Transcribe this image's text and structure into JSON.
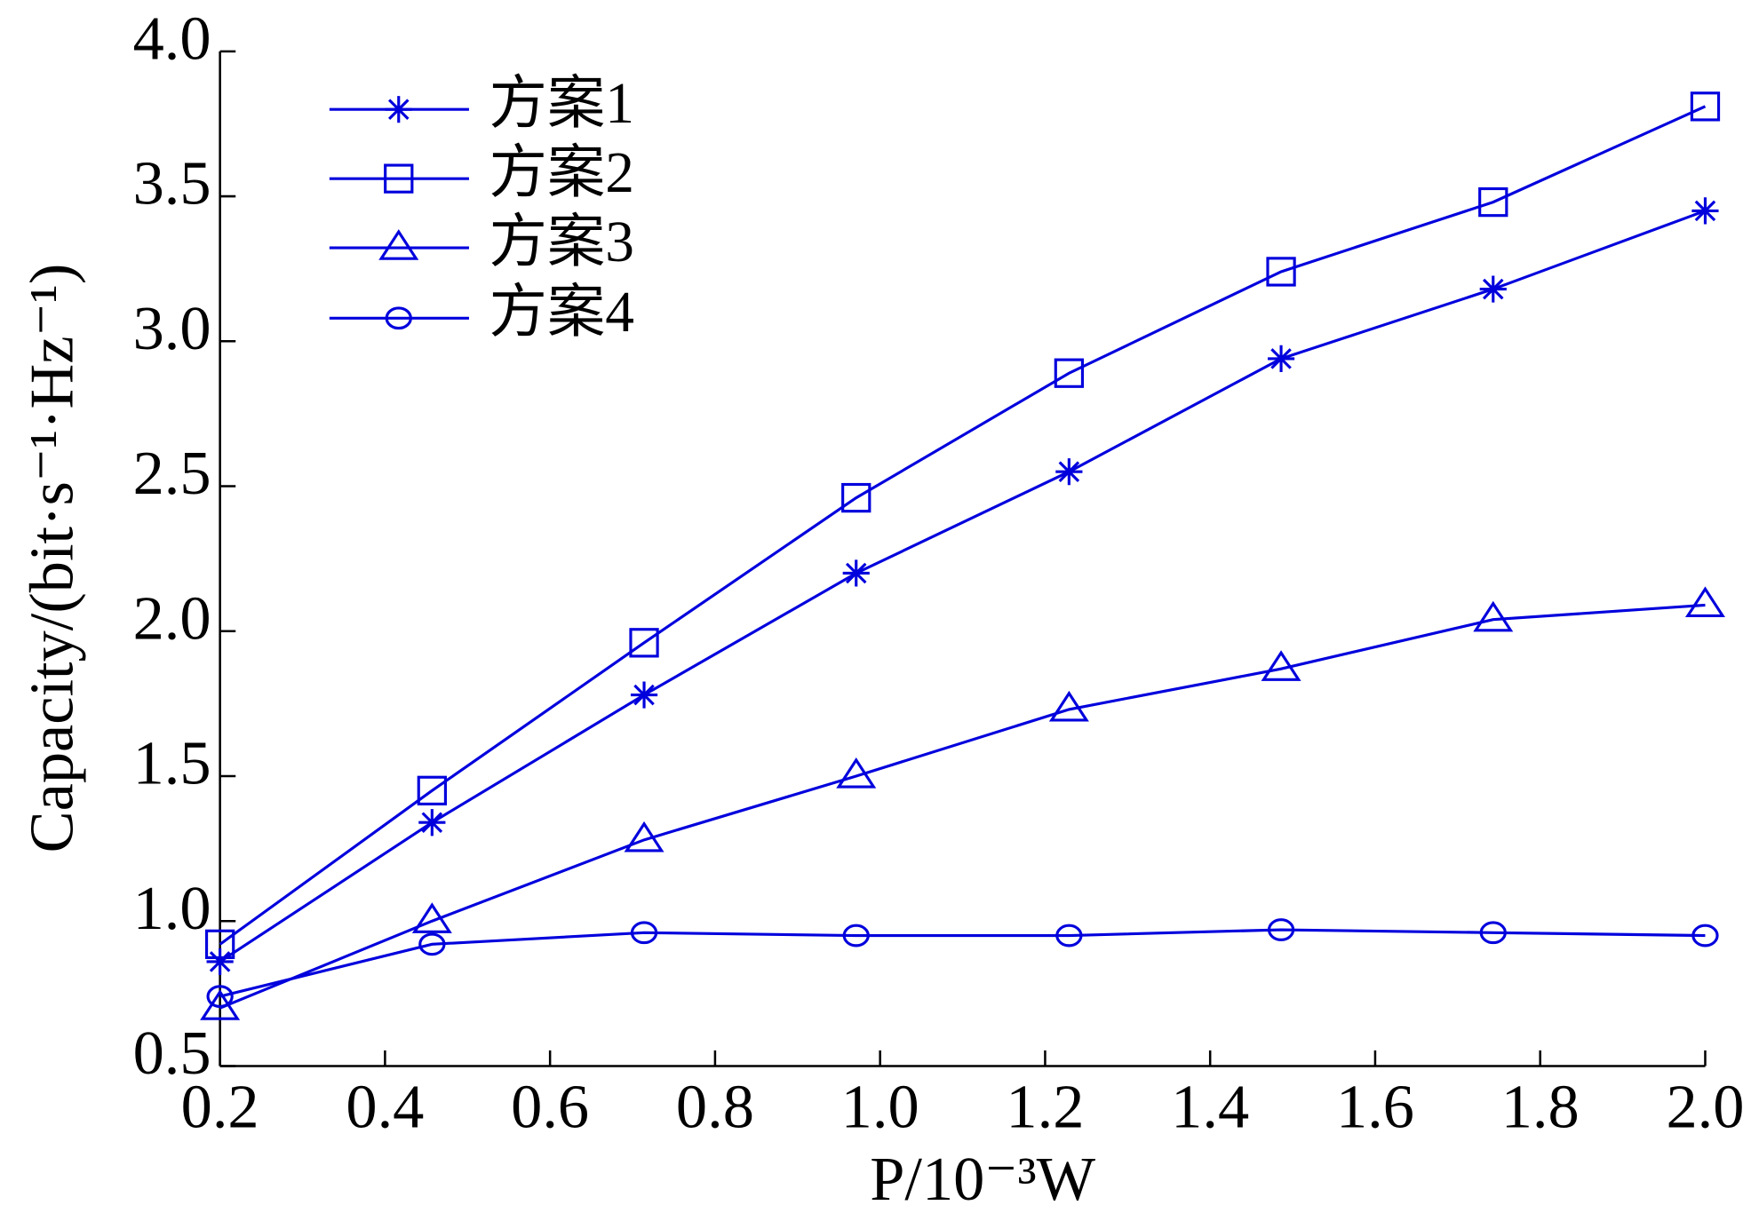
{
  "chart_data": {
    "type": "line",
    "xlabel": "P/10⁻³W",
    "ylabel": "Capacity/(bit·s⁻¹·Hz⁻¹)",
    "x": [
      0.2,
      0.457,
      0.714,
      0.971,
      1.229,
      1.486,
      1.743,
      2.0
    ],
    "series": [
      {
        "name": "方案1",
        "color": "#0000dd",
        "marker": "star",
        "values": [
          0.86,
          1.34,
          1.78,
          2.2,
          2.55,
          2.94,
          3.18,
          3.45
        ]
      },
      {
        "name": "方案2",
        "color": "#0000dd",
        "marker": "square",
        "values": [
          0.92,
          1.45,
          1.96,
          2.46,
          2.89,
          3.24,
          3.48,
          3.81
        ]
      },
      {
        "name": "方案3",
        "color": "#0000dd",
        "marker": "triangle",
        "values": [
          0.7,
          1.0,
          1.28,
          1.5,
          1.73,
          1.87,
          2.04,
          2.09
        ]
      },
      {
        "name": "方案4",
        "color": "#0000dd",
        "marker": "circle",
        "values": [
          0.74,
          0.92,
          0.96,
          0.95,
          0.95,
          0.97,
          0.96,
          0.95
        ]
      }
    ],
    "xlim": [
      0.2,
      2.0
    ],
    "xticks": [
      0.2,
      0.4,
      0.6,
      0.8,
      {
        "value": 1,
        "label": "1.0"
      },
      1.2,
      1.4,
      1.6,
      1.8,
      {
        "value": 2,
        "label": "2.0"
      }
    ],
    "ylim": [
      0.5,
      4.0
    ],
    "yticks": [
      0.5,
      {
        "value": 1,
        "label": "1.0"
      },
      1.5,
      {
        "value": 2,
        "label": "2.0"
      },
      2.5,
      {
        "value": 3,
        "label": "3.0"
      },
      3.5,
      {
        "value": 4,
        "label": "4.0"
      }
    ],
    "legend": "upper-left"
  }
}
